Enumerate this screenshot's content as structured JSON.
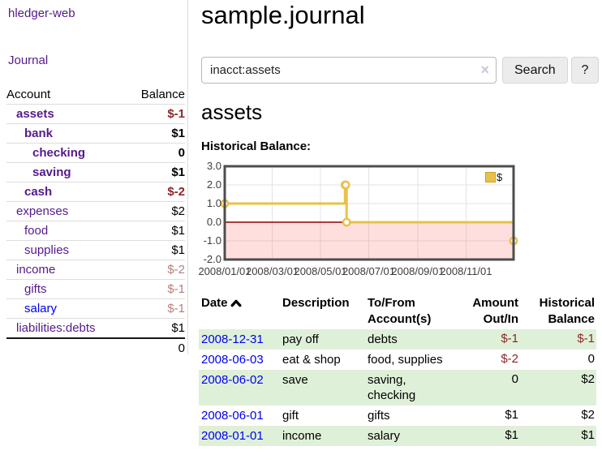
{
  "sidebar": {
    "app_title": "hledger-web",
    "journal_link": "Journal",
    "accounts_header": {
      "account": "Account",
      "balance": "Balance"
    },
    "accounts": [
      {
        "name": "assets",
        "level": 1,
        "bold": true,
        "color": "#551a8b",
        "balance": "$-1",
        "balance_color": "#8e2626"
      },
      {
        "name": "bank",
        "level": 2,
        "bold": true,
        "color": "#551a8b",
        "balance": "$1",
        "balance_color": "#000000"
      },
      {
        "name": "checking",
        "level": 3,
        "bold": true,
        "color": "#551a8b",
        "balance": "0",
        "balance_color": "#000000"
      },
      {
        "name": "saving",
        "level": 3,
        "bold": true,
        "color": "#551a8b",
        "balance": "$1",
        "balance_color": "#000000"
      },
      {
        "name": "cash",
        "level": 2,
        "bold": true,
        "color": "#551a8b",
        "balance": "$-2",
        "balance_color": "#8e2626"
      },
      {
        "name": "expenses",
        "level": 1,
        "bold": false,
        "color": "#551a8b",
        "balance": "$2",
        "balance_color": "#000000"
      },
      {
        "name": "food",
        "level": 2,
        "bold": false,
        "color": "#551a8b",
        "balance": "$1",
        "balance_color": "#000000"
      },
      {
        "name": "supplies",
        "level": 2,
        "bold": false,
        "color": "#551a8b",
        "balance": "$1",
        "balance_color": "#000000"
      },
      {
        "name": "income",
        "level": 1,
        "bold": false,
        "color": "#551a8b",
        "balance": "$-2",
        "balance_color": "#b87d7d"
      },
      {
        "name": "gifts",
        "level": 2,
        "bold": false,
        "color": "#551a8b",
        "balance": "$-1",
        "balance_color": "#b87d7d"
      },
      {
        "name": "salary",
        "level": 2,
        "bold": false,
        "color": "#0000ee",
        "balance": "$-1",
        "balance_color": "#b87d7d"
      },
      {
        "name": "liabilities:debts",
        "level": 1,
        "bold": false,
        "color": "#551a8b",
        "balance": "$1",
        "balance_color": "#000000"
      }
    ],
    "total": "0"
  },
  "main": {
    "title": "sample.journal",
    "search": {
      "value": "inacct:assets",
      "clear_icon": "×",
      "button_label": "Search",
      "help_label": "?"
    },
    "account_heading": "assets",
    "chart_label": "Historical Balance:"
  },
  "chart_data": {
    "type": "line",
    "title": "Historical Balance",
    "step": true,
    "x_domain": [
      "2008-01-01",
      "2008-12-31"
    ],
    "ylim": [
      -2,
      3
    ],
    "yticks": [
      "3.0",
      "2.0",
      "1.0",
      "0.0",
      "-1.0",
      "-2.0"
    ],
    "xticks": [
      {
        "label": "2008/01/01",
        "date": "2008-01-01"
      },
      {
        "label": "2008/03/01",
        "date": "2008-03-01"
      },
      {
        "label": "2008/05/01",
        "date": "2008-05-01"
      },
      {
        "label": "2008/07/01",
        "date": "2008-07-01"
      },
      {
        "label": "2008/09/01",
        "date": "2008-09-01"
      },
      {
        "label": "2008/11/01",
        "date": "2008-11-01"
      }
    ],
    "series": [
      {
        "name": "$",
        "points": [
          [
            "2008-01-01",
            1
          ],
          [
            "2008-06-01",
            2
          ],
          [
            "2008-06-02",
            2
          ],
          [
            "2008-06-03",
            0
          ],
          [
            "2008-12-31",
            -1
          ]
        ]
      }
    ],
    "line_color": "#e8c14b",
    "zero_line_color": "#8b0000",
    "negative_region_color": "rgba(255,105,105,0.22)",
    "grid_color": "#e3e3e3",
    "legend_position": "top-right"
  },
  "register": {
    "columns": [
      "Date",
      "Description",
      "To/From Account(s)",
      "Amount Out/In",
      "Historical Balance"
    ],
    "rows": [
      {
        "date": "2008-12-31",
        "description": "pay off",
        "accounts": "debts",
        "amount": "$-1",
        "balance": "$-1"
      },
      {
        "date": "2008-06-03",
        "description": "eat & shop",
        "accounts": "food, supplies",
        "amount": "$-2",
        "balance": "0"
      },
      {
        "date": "2008-06-02",
        "description": "save",
        "accounts": "saving, checking",
        "amount": "0",
        "balance": "$2"
      },
      {
        "date": "2008-06-01",
        "description": "gift",
        "accounts": "gifts",
        "amount": "$1",
        "balance": "$2"
      },
      {
        "date": "2008-01-01",
        "description": "income",
        "accounts": "salary",
        "amount": "$1",
        "balance": "$1"
      }
    ]
  }
}
